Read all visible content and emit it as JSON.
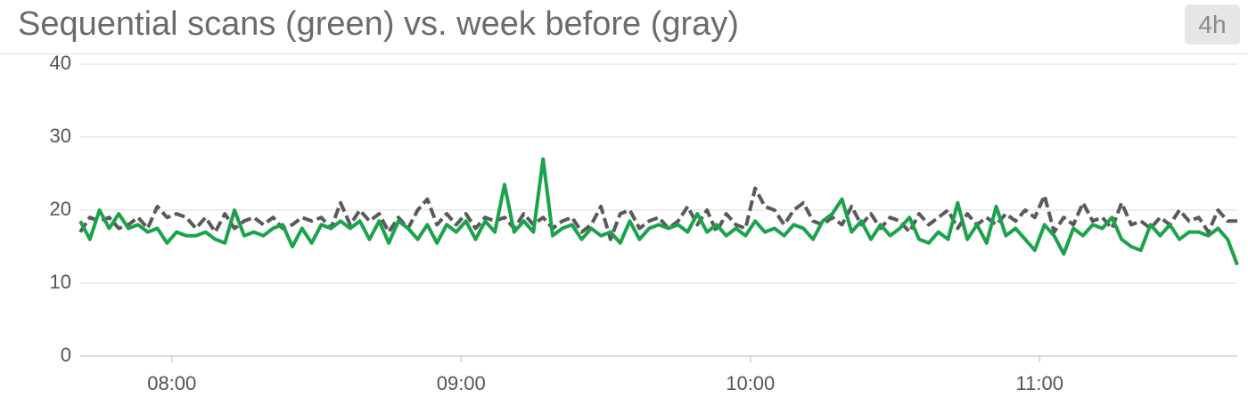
{
  "chart_data": {
    "type": "line",
    "title": "Sequential scans (green) vs. week before (gray)",
    "range_button": "4h",
    "x": [
      "07:41",
      "07:43",
      "07:45",
      "07:47",
      "07:49",
      "07:51",
      "07:53",
      "07:55",
      "07:57",
      "07:59",
      "08:01",
      "08:03",
      "08:05",
      "08:07",
      "08:09",
      "08:11",
      "08:13",
      "08:15",
      "08:17",
      "08:19",
      "08:21",
      "08:23",
      "08:25",
      "08:27",
      "08:29",
      "08:31",
      "08:33",
      "08:35",
      "08:37",
      "08:39",
      "08:41",
      "08:43",
      "08:45",
      "08:47",
      "08:49",
      "08:51",
      "08:53",
      "08:55",
      "08:57",
      "08:59",
      "09:01",
      "09:03",
      "09:05",
      "09:07",
      "09:09",
      "09:11",
      "09:13",
      "09:15",
      "09:17",
      "09:19",
      "09:21",
      "09:23",
      "09:25",
      "09:27",
      "09:29",
      "09:31",
      "09:33",
      "09:35",
      "09:37",
      "09:39",
      "09:41",
      "09:43",
      "09:45",
      "09:47",
      "09:49",
      "09:51",
      "09:53",
      "09:55",
      "09:57",
      "09:59",
      "10:01",
      "10:03",
      "10:05",
      "10:07",
      "10:09",
      "10:11",
      "10:13",
      "10:15",
      "10:17",
      "10:19",
      "10:21",
      "10:23",
      "10:25",
      "10:27",
      "10:29",
      "10:31",
      "10:33",
      "10:35",
      "10:37",
      "10:39",
      "10:41",
      "10:43",
      "10:45",
      "10:47",
      "10:49",
      "10:51",
      "10:53",
      "10:55",
      "10:57",
      "10:59",
      "11:01",
      "11:03",
      "11:05",
      "11:07",
      "11:09",
      "11:11",
      "11:13",
      "11:15",
      "11:17",
      "11:19",
      "11:21",
      "11:23",
      "11:25",
      "11:27",
      "11:29",
      "11:31",
      "11:33",
      "11:35",
      "11:37",
      "11:39",
      "11:41"
    ],
    "series": [
      {
        "color": "#5a5a5a",
        "dashed": true,
        "values": [
          17,
          19,
          18.5,
          19,
          17.5,
          18,
          19,
          17.5,
          20.5,
          19,
          19.5,
          19,
          17.5,
          19,
          17,
          19.5,
          17.5,
          18.5,
          19,
          18,
          19,
          17.5,
          18,
          19,
          18.5,
          19,
          17.5,
          21,
          18,
          20,
          18.5,
          19.5,
          17,
          19,
          17.5,
          20,
          21.5,
          18,
          19.5,
          18,
          19.5,
          17.5,
          19,
          18.5,
          19,
          17.5,
          19.5,
          18,
          19,
          17.5,
          18.5,
          19,
          17,
          18,
          20.5,
          16,
          19.5,
          20,
          17.5,
          18.5,
          19,
          17.5,
          18.5,
          20.5,
          18,
          20,
          17,
          19.5,
          18,
          17.5,
          23,
          20.5,
          20,
          18,
          20,
          21,
          18.5,
          18,
          19,
          18,
          20.5,
          18,
          19.5,
          17.5,
          19,
          18.5,
          17,
          19.5,
          18,
          19,
          20,
          17.5,
          19.5,
          18,
          19,
          18,
          19.5,
          18.5,
          20,
          19,
          22,
          17,
          19,
          18,
          21,
          18.5,
          19,
          17.5,
          21,
          18,
          18.5,
          17.5,
          19,
          18,
          20,
          18.5,
          19,
          17,
          20,
          18.5,
          18.5
        ]
      },
      {
        "color": "#1aa34a",
        "dashed": false,
        "values": [
          18.5,
          16,
          20,
          17.5,
          19.5,
          17.5,
          18,
          17,
          17.5,
          15.5,
          17,
          16.5,
          16.5,
          17,
          16,
          15.5,
          20,
          16.5,
          17,
          16.5,
          17.5,
          18,
          15,
          17.5,
          15.5,
          18,
          17.5,
          18.5,
          17.5,
          18.5,
          16,
          18.5,
          15.5,
          18.5,
          17.5,
          16,
          18,
          15.5,
          18,
          17,
          18.5,
          16,
          18.5,
          17,
          23.5,
          17,
          18.5,
          17,
          27,
          16.5,
          17.5,
          18,
          16,
          17.5,
          16.5,
          17,
          15.5,
          18.5,
          16,
          17.5,
          18,
          17.5,
          18,
          17,
          19.5,
          17,
          18,
          16.5,
          17.5,
          16.5,
          18.5,
          17,
          17.5,
          16.5,
          18,
          17.5,
          16,
          18.5,
          19.5,
          21.5,
          17,
          18.5,
          16,
          18,
          16.5,
          17.5,
          19,
          16,
          15.5,
          17,
          16,
          21,
          16,
          18,
          15.5,
          20.5,
          16.5,
          17.5,
          16,
          14.5,
          18,
          16.5,
          14,
          17.5,
          16.5,
          18,
          17.5,
          19,
          16,
          15,
          14.5,
          18,
          16.5,
          18,
          16,
          17,
          17,
          16.5,
          17.5,
          16,
          12.5
        ]
      }
    ],
    "xlim": [
      "07:41",
      "11:41"
    ],
    "xticks": [
      "08:00",
      "09:00",
      "10:00",
      "11:00"
    ],
    "ylim": [
      0,
      40
    ],
    "yticks": [
      0,
      10,
      20,
      30,
      40
    ],
    "grid": true
  }
}
